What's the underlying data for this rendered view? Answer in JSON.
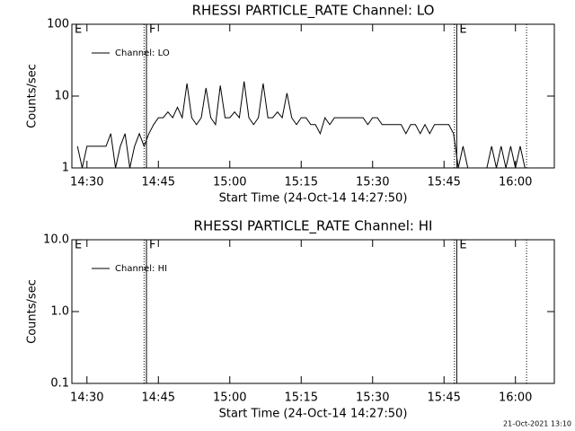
{
  "chart_data": [
    {
      "type": "line",
      "title": "RHESSI PARTICLE_RATE Channel: LO",
      "ylabel": "Counts/sec",
      "xlabel": "Start Time (24-Oct-14 14:27:50)",
      "log_y": true,
      "xlim": [
        "14:26:50",
        "16:08:10"
      ],
      "ylim": [
        1,
        100
      ],
      "yticks": [
        1,
        10,
        100
      ],
      "xticks": [
        "14:30",
        "14:45",
        "15:00",
        "15:15",
        "15:30",
        "15:45",
        "16:00"
      ],
      "flags": [
        {
          "x": "14:26:50",
          "label": "E"
        },
        {
          "x": "14:42:30",
          "label": "F"
        },
        {
          "x": "15:47:40",
          "label": "E"
        }
      ],
      "solid_lines": [
        "14:42:30",
        "15:47:40"
      ],
      "dotted_lines": [
        "14:42:00",
        "15:47:10",
        "16:02:20"
      ],
      "legend": "upper left",
      "series": [
        {
          "name": "Channel: LO",
          "color": "#000000",
          "x": [
            "14:28",
            "14:29",
            "14:30",
            "14:31",
            "14:32",
            "14:33",
            "14:34",
            "14:35",
            "14:36",
            "14:37",
            "14:38",
            "14:39",
            "14:40",
            "14:41",
            "14:42",
            "14:43",
            "14:44",
            "14:45",
            "14:46",
            "14:47",
            "14:48",
            "14:49",
            "14:50",
            "14:51",
            "14:52",
            "14:53",
            "14:54",
            "14:55",
            "14:56",
            "14:57",
            "14:58",
            "14:59",
            "15:00",
            "15:01",
            "15:02",
            "15:03",
            "15:04",
            "15:05",
            "15:06",
            "15:07",
            "15:08",
            "15:09",
            "15:10",
            "15:11",
            "15:12",
            "15:13",
            "15:14",
            "15:15",
            "15:16",
            "15:17",
            "15:18",
            "15:19",
            "15:20",
            "15:21",
            "15:22",
            "15:23",
            "15:24",
            "15:25",
            "15:26",
            "15:27",
            "15:28",
            "15:29",
            "15:30",
            "15:31",
            "15:32",
            "15:33",
            "15:34",
            "15:35",
            "15:36",
            "15:37",
            "15:38",
            "15:39",
            "15:40",
            "15:41",
            "15:42",
            "15:43",
            "15:44",
            "15:45",
            "15:46",
            "15:47",
            "15:48",
            "15:49",
            "15:50",
            "15:51",
            "15:52",
            "15:53",
            "15:54",
            "15:55",
            "15:56",
            "15:57",
            "15:58",
            "15:59",
            "16:00",
            "16:01",
            "16:02"
          ],
          "values": [
            2,
            1,
            2,
            2,
            2,
            2,
            2,
            3,
            1,
            2,
            3,
            1,
            2,
            3,
            2,
            3,
            4,
            5,
            5,
            6,
            5,
            7,
            5,
            15,
            5,
            4,
            5,
            13,
            5,
            4,
            14,
            5,
            5,
            6,
            5,
            16,
            5,
            4,
            5,
            15,
            5,
            5,
            6,
            5,
            11,
            5,
            4,
            5,
            5,
            4,
            4,
            3,
            5,
            4,
            5,
            5,
            5,
            5,
            5,
            5,
            5,
            4,
            5,
            5,
            4,
            4,
            4,
            4,
            4,
            3,
            4,
            4,
            3,
            4,
            3,
            4,
            4,
            4,
            4,
            3,
            1,
            2,
            1,
            1,
            1,
            1,
            1,
            2,
            1,
            2,
            1,
            2,
            1,
            2,
            1
          ]
        }
      ]
    },
    {
      "type": "line",
      "title": "RHESSI PARTICLE_RATE Channel: HI",
      "ylabel": "Counts/sec",
      "xlabel": "Start Time (24-Oct-14 14:27:50)",
      "log_y": true,
      "xlim": [
        "14:26:50",
        "16:08:10"
      ],
      "ylim": [
        0.1,
        10
      ],
      "yticks": [
        0.1,
        {
          "value": 1,
          "label": "1.0"
        },
        {
          "value": 10,
          "label": "10.0"
        }
      ],
      "xticks": [
        "14:30",
        "14:45",
        "15:00",
        "15:15",
        "15:30",
        "15:45",
        "16:00"
      ],
      "flags": [
        {
          "x": "14:26:50",
          "label": "E"
        },
        {
          "x": "14:42:30",
          "label": "F"
        },
        {
          "x": "15:47:40",
          "label": "E"
        }
      ],
      "solid_lines": [
        "14:42:30",
        "15:47:40"
      ],
      "dotted_lines": [
        "14:42:00",
        "15:47:10",
        "16:02:20"
      ],
      "legend": "upper left",
      "series": [
        {
          "name": "Channel: HI",
          "color": "#000000",
          "x": [],
          "values": []
        }
      ]
    }
  ],
  "footer": "21-Oct-2021 13:10"
}
